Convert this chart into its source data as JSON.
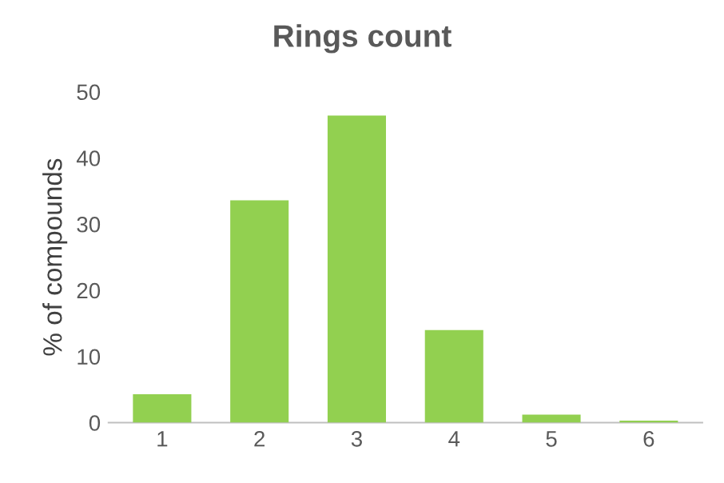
{
  "chart_data": {
    "type": "bar",
    "title": "Rings count",
    "ylabel": "% of compounds",
    "categories": [
      "1",
      "2",
      "3",
      "4",
      "5",
      "6"
    ],
    "values": [
      4.3,
      33.6,
      46.4,
      14.0,
      1.2,
      0.3
    ],
    "color": "#92d050",
    "ylim": [
      0,
      50
    ],
    "yticks": [
      0,
      10,
      20,
      30,
      40,
      50
    ],
    "grid": false
  }
}
